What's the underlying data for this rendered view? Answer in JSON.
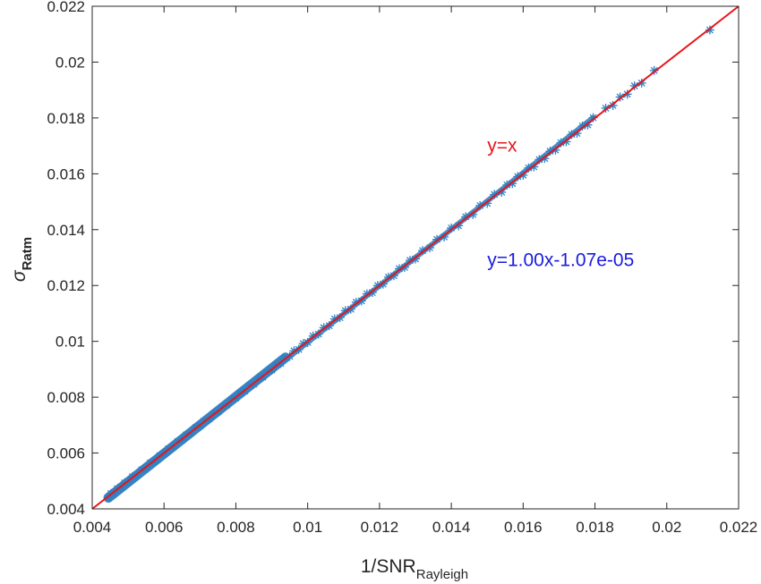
{
  "chart_data": {
    "type": "scatter",
    "title": "",
    "xlabel": {
      "main": "1/SNR",
      "sub": "Rayleigh"
    },
    "ylabel": {
      "main": "σ",
      "sub": "Ratm"
    },
    "xlim": [
      0.004,
      0.022
    ],
    "ylim": [
      0.004,
      0.022
    ],
    "x_ticks": [
      {
        "value": 0.004,
        "label": "0.004"
      },
      {
        "value": 0.006,
        "label": "0.006"
      },
      {
        "value": 0.008,
        "label": "0.008"
      },
      {
        "value": 0.01,
        "label": "0.01"
      },
      {
        "value": 0.012,
        "label": "0.012"
      },
      {
        "value": 0.014,
        "label": "0.014"
      },
      {
        "value": 0.016,
        "label": "0.016"
      },
      {
        "value": 0.018,
        "label": "0.018"
      },
      {
        "value": 0.02,
        "label": "0.02"
      },
      {
        "value": 0.022,
        "label": "0.022"
      }
    ],
    "y_ticks": [
      {
        "value": 0.004,
        "label": "0.004"
      },
      {
        "value": 0.006,
        "label": "0.006"
      },
      {
        "value": 0.008,
        "label": "0.008"
      },
      {
        "value": 0.01,
        "label": "0.01"
      },
      {
        "value": 0.012,
        "label": "0.012"
      },
      {
        "value": 0.014,
        "label": "0.014"
      },
      {
        "value": 0.016,
        "label": "0.016"
      },
      {
        "value": 0.018,
        "label": "0.018"
      },
      {
        "value": 0.02,
        "label": "0.02"
      },
      {
        "value": 0.022,
        "label": "0.022"
      }
    ],
    "grid": false,
    "series": [
      {
        "marker": "asterisk",
        "color": "#2f7fc1",
        "points": [
          [
            0.00445,
            0.0044
          ],
          [
            0.00452,
            0.00455
          ],
          [
            0.0046,
            0.00458
          ],
          [
            0.0047,
            0.00472
          ],
          [
            0.0048,
            0.00478
          ],
          [
            0.0049,
            0.00493
          ],
          [
            0.005,
            0.00498
          ],
          [
            0.00512,
            0.00515
          ],
          [
            0.00525,
            0.00522
          ],
          [
            0.00538,
            0.0054
          ],
          [
            0.0055,
            0.00548
          ],
          [
            0.00562,
            0.00565
          ],
          [
            0.00575,
            0.00572
          ],
          [
            0.00588,
            0.0059
          ],
          [
            0.006,
            0.00598
          ],
          [
            0.00612,
            0.00615
          ],
          [
            0.00625,
            0.00622
          ],
          [
            0.00638,
            0.00641
          ],
          [
            0.0065,
            0.00647
          ],
          [
            0.00662,
            0.00665
          ],
          [
            0.00675,
            0.00672
          ],
          [
            0.00688,
            0.00691
          ],
          [
            0.007,
            0.00697
          ],
          [
            0.00712,
            0.00715
          ],
          [
            0.00725,
            0.00722
          ],
          [
            0.00738,
            0.00741
          ],
          [
            0.0075,
            0.00747
          ],
          [
            0.00762,
            0.00765
          ],
          [
            0.00775,
            0.00772
          ],
          [
            0.00788,
            0.00791
          ],
          [
            0.008,
            0.00797
          ],
          [
            0.00812,
            0.00815
          ],
          [
            0.00825,
            0.00822
          ],
          [
            0.00838,
            0.00841
          ],
          [
            0.0085,
            0.00847
          ],
          [
            0.00862,
            0.00865
          ],
          [
            0.00875,
            0.00872
          ],
          [
            0.00888,
            0.00891
          ],
          [
            0.009,
            0.00897
          ],
          [
            0.00912,
            0.00915
          ],
          [
            0.00925,
            0.00921
          ],
          [
            0.00938,
            0.00942
          ],
          [
            0.0095,
            0.00946
          ],
          [
            0.00962,
            0.00966
          ],
          [
            0.00975,
            0.00971
          ],
          [
            0.00988,
            0.00992
          ],
          [
            0.01,
            0.00996
          ],
          [
            0.01015,
            0.01019
          ],
          [
            0.0103,
            0.01026
          ],
          [
            0.01045,
            0.01049
          ],
          [
            0.0106,
            0.01056
          ],
          [
            0.01075,
            0.0108
          ],
          [
            0.0109,
            0.01085
          ],
          [
            0.01105,
            0.0111
          ],
          [
            0.0112,
            0.01115
          ],
          [
            0.01135,
            0.0114
          ],
          [
            0.0115,
            0.01145
          ],
          [
            0.01165,
            0.0117
          ],
          [
            0.0118,
            0.01175
          ],
          [
            0.01195,
            0.012
          ],
          [
            0.0121,
            0.01205
          ],
          [
            0.01225,
            0.0123
          ],
          [
            0.0124,
            0.01235
          ],
          [
            0.01255,
            0.0126
          ],
          [
            0.0127,
            0.01265
          ],
          [
            0.01285,
            0.0129
          ],
          [
            0.013,
            0.01295
          ],
          [
            0.0132,
            0.01325
          ],
          [
            0.0134,
            0.01335
          ],
          [
            0.0136,
            0.01365
          ],
          [
            0.0138,
            0.01374
          ],
          [
            0.014,
            0.01406
          ],
          [
            0.0142,
            0.01414
          ],
          [
            0.0144,
            0.01446
          ],
          [
            0.0146,
            0.01454
          ],
          [
            0.0148,
            0.01486
          ],
          [
            0.015,
            0.01494
          ],
          [
            0.0152,
            0.01526
          ],
          [
            0.0154,
            0.01534
          ],
          [
            0.01555,
            0.0156
          ],
          [
            0.0157,
            0.01565
          ],
          [
            0.01585,
            0.0159
          ],
          [
            0.016,
            0.01595
          ],
          [
            0.01615,
            0.01621
          ],
          [
            0.0163,
            0.01625
          ],
          [
            0.01645,
            0.01651
          ],
          [
            0.0166,
            0.01655
          ],
          [
            0.01675,
            0.01681
          ],
          [
            0.0169,
            0.01685
          ],
          [
            0.01705,
            0.01711
          ],
          [
            0.0172,
            0.01715
          ],
          [
            0.01735,
            0.01741
          ],
          [
            0.0175,
            0.01745
          ],
          [
            0.01765,
            0.01771
          ],
          [
            0.0178,
            0.01775
          ],
          [
            0.01795,
            0.01801
          ],
          [
            0.0183,
            0.01835
          ],
          [
            0.0185,
            0.01845
          ],
          [
            0.0187,
            0.01875
          ],
          [
            0.0189,
            0.01885
          ],
          [
            0.0191,
            0.01915
          ],
          [
            0.0193,
            0.01925
          ],
          [
            0.01965,
            0.0197
          ],
          [
            0.0212,
            0.02115
          ]
        ]
      }
    ],
    "reference_line": {
      "from": [
        0.004,
        0.004
      ],
      "to": [
        0.022,
        0.022
      ],
      "color": "#e8141a"
    },
    "annotations": [
      {
        "text": "y=x",
        "x": 0.015,
        "y": 0.0168,
        "color": "#e8141a"
      },
      {
        "text": "y=1.00x-1.07e-05",
        "x": 0.015,
        "y": 0.0127,
        "color": "#1a1adf"
      }
    ]
  }
}
